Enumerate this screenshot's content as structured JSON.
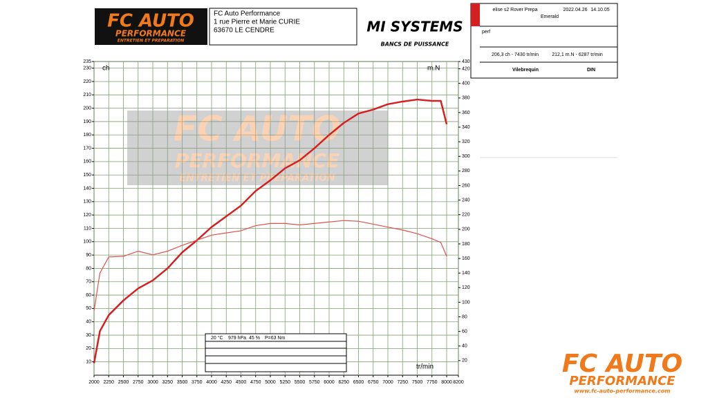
{
  "header": {
    "logo": {
      "title": "FC AUTO",
      "subtitle": "PERFORMANCE",
      "tagline": "ENTRETIEN ET PREPARATION"
    },
    "address": [
      "FC Auto Performance",
      "1 rue Pierre et Marie CURIE",
      "63670 LE CENDRE"
    ],
    "partner_logo": {
      "title": "MI SYSTEMS",
      "tagline": "BANCS DE PUISSANCE"
    }
  },
  "info_panel": {
    "vehicle": "elise s2 Rover Prepa",
    "date": "2022.04.26",
    "time": "14.10.05",
    "engine": "Emerald",
    "note": "perf",
    "max_power": "206,3 ch - 7430 tr/min",
    "max_torque": "212,1 m.N - 6287 tr/min",
    "measure": "Vilebrequin",
    "norm": "DIN"
  },
  "conditions": [
    "20 °C",
    "979 hPa",
    "45 %",
    "P=63 Nm"
  ],
  "watermark": {
    "title": "FC AUTO",
    "subtitle": "PERFORMANCE",
    "tagline": "ENTRETIEN ET PREPARATION"
  },
  "footer_logo": {
    "title": "FC AUTO",
    "subtitle": "PERFORMANCE",
    "url": "www.fc-auto-performance.com"
  },
  "chart_data": {
    "type": "line",
    "y_label": "ch",
    "y2_label": "m.N",
    "x_label": "tr/min",
    "x": [
      2000,
      2100,
      2250,
      2500,
      2750,
      3000,
      3250,
      3500,
      3750,
      4000,
      4250,
      4500,
      4750,
      5000,
      5250,
      5500,
      5750,
      6000,
      6250,
      6500,
      6750,
      7000,
      7250,
      7500,
      7750,
      7900,
      8000
    ],
    "series": [
      {
        "name": "ch",
        "color": "#d42020",
        "width": 2.5,
        "axis": "y",
        "values": [
          9,
          33,
          45,
          56,
          65,
          71,
          80,
          92,
          101,
          111,
          119,
          127,
          138,
          146,
          155,
          161,
          170,
          180,
          189,
          196,
          199,
          203,
          205,
          206.5,
          205.5,
          205.5,
          188
        ]
      },
      {
        "name": "m.N",
        "color": "#e05050",
        "width": 1.2,
        "axis": "y2",
        "values": [
          88,
          140,
          162,
          163,
          170,
          165,
          170,
          178,
          185,
          192,
          195,
          198,
          205,
          208,
          208,
          206,
          208,
          210,
          212,
          211,
          207,
          203,
          199,
          194,
          187,
          182,
          163
        ]
      }
    ],
    "xlim": [
      2000,
      8200
    ],
    "xticks": [
      2000,
      2250,
      2500,
      2750,
      3000,
      3250,
      3500,
      3750,
      4000,
      4250,
      4500,
      4750,
      5000,
      5250,
      5500,
      5750,
      6000,
      6250,
      6500,
      6750,
      7000,
      7250,
      7500,
      7750,
      8000,
      8200
    ],
    "ylim": [
      0,
      235
    ],
    "yticks": [
      10,
      20,
      30,
      40,
      50,
      60,
      70,
      80,
      90,
      100,
      110,
      120,
      130,
      140,
      150,
      160,
      170,
      180,
      190,
      200,
      210,
      220,
      230,
      235
    ],
    "y2lim": [
      0,
      430
    ],
    "y2ticks": [
      20,
      40,
      60,
      80,
      100,
      120,
      140,
      160,
      180,
      200,
      220,
      240,
      260,
      280,
      300,
      320,
      340,
      360,
      380,
      400,
      420,
      430
    ],
    "grid": true,
    "grid_color": "#7f9f6f"
  }
}
